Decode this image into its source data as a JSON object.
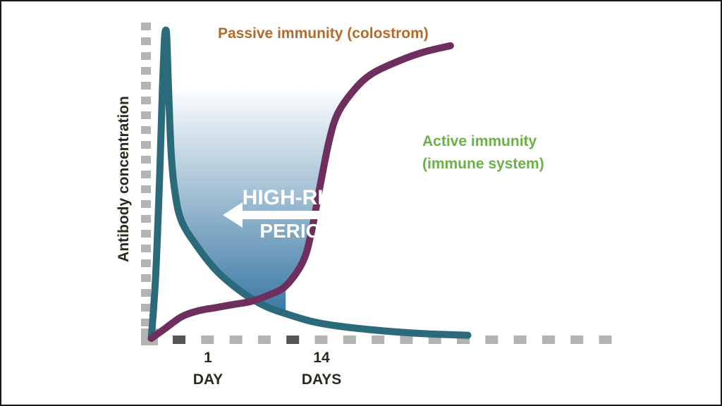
{
  "chart_data": {
    "type": "line",
    "title": "",
    "ylabel": "Antibody concentration",
    "xlabel": "",
    "x_ticks": [
      {
        "label_top": "1",
        "label_bottom": "DAY",
        "x": 1
      },
      {
        "label_top": "14",
        "label_bottom": "DAYS",
        "x": 14
      }
    ],
    "series": [
      {
        "name": "Passive immunity (colostrom)",
        "color": "#2a6a7a",
        "points": [
          [
            -1.5,
            0.0
          ],
          [
            -1.0,
            0.2
          ],
          [
            -0.5,
            0.55
          ],
          [
            -0.2,
            0.82
          ],
          [
            0.0,
            0.96
          ],
          [
            0.15,
            1.0
          ],
          [
            0.3,
            0.97
          ],
          [
            0.5,
            0.8
          ],
          [
            0.8,
            0.6
          ],
          [
            1.2,
            0.48
          ],
          [
            2,
            0.38
          ],
          [
            4,
            0.29
          ],
          [
            6,
            0.22
          ],
          [
            8,
            0.17
          ],
          [
            10,
            0.13
          ],
          [
            12,
            0.1
          ],
          [
            14,
            0.08
          ],
          [
            17,
            0.055
          ],
          [
            20,
            0.04
          ],
          [
            25,
            0.025
          ],
          [
            30,
            0.015
          ],
          [
            35,
            0.01
          ]
        ]
      },
      {
        "name": "Active immunity\n(immune system)",
        "color": "#6e2f5f",
        "points": [
          [
            -1.5,
            0.0
          ],
          [
            0,
            0.03
          ],
          [
            2,
            0.07
          ],
          [
            4,
            0.09
          ],
          [
            6,
            0.1
          ],
          [
            8,
            0.11
          ],
          [
            10,
            0.12
          ],
          [
            12,
            0.14
          ],
          [
            14,
            0.17
          ],
          [
            16,
            0.25
          ],
          [
            17,
            0.35
          ],
          [
            18,
            0.5
          ],
          [
            19,
            0.64
          ],
          [
            20,
            0.73
          ],
          [
            22,
            0.81
          ],
          [
            24,
            0.86
          ],
          [
            27,
            0.9
          ],
          [
            30,
            0.93
          ],
          [
            33,
            0.95
          ]
        ]
      }
    ],
    "annotations": [
      {
        "text_line1": "HIGH-RISK",
        "text_line2": "PERIOD"
      }
    ],
    "colors": {
      "passive_label": "#b46a2a",
      "active_label": "#6bb04a",
      "axis_text": "#2a2a1e",
      "axis_dash": "#b3b3b3",
      "tick_marker": "#555555",
      "fill_top": "#ffffff",
      "fill_bottom": "#3a78a4"
    }
  }
}
